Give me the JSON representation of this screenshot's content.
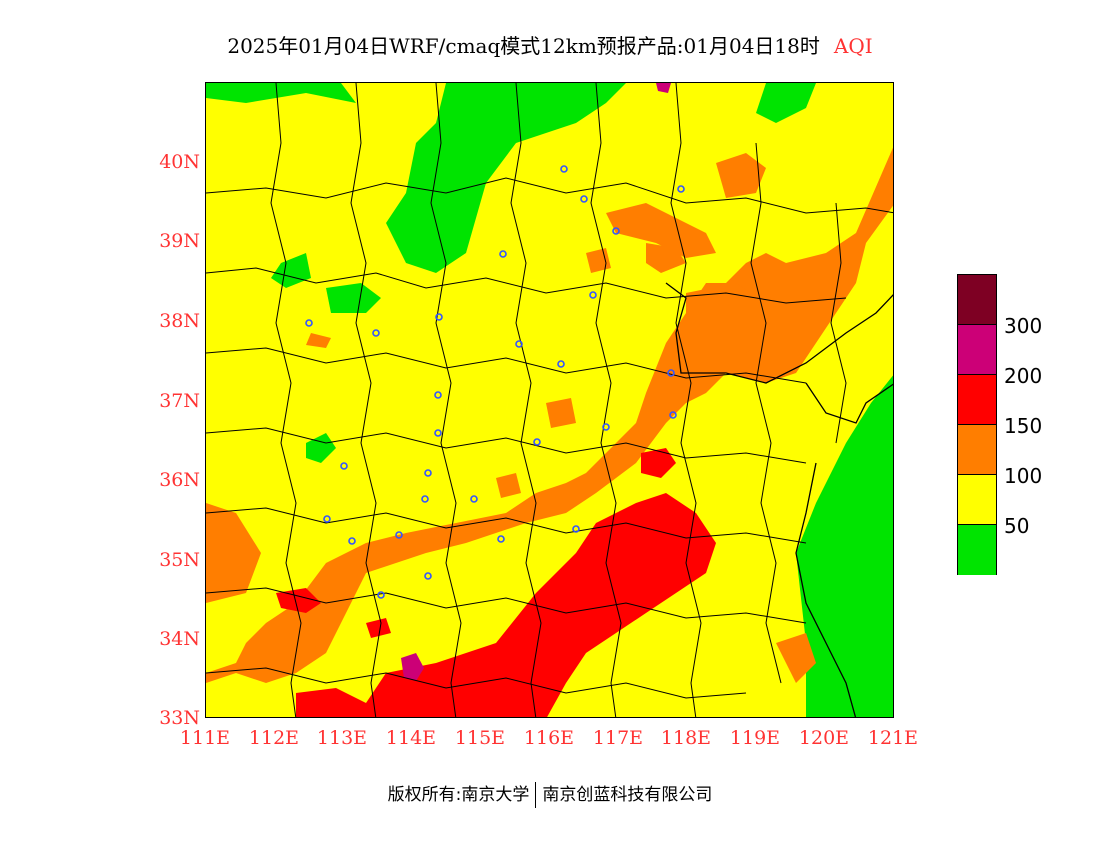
{
  "title": {
    "main": "2025年01月04日WRF/cmaq模式12km预报产品:01月04日18时",
    "product": "AQI"
  },
  "map": {
    "lat_labels": [
      "40N",
      "39N",
      "38N",
      "37N",
      "36N",
      "35N",
      "34N",
      "33N"
    ],
    "lon_labels": [
      "111E",
      "112E",
      "113E",
      "114E",
      "115E",
      "116E",
      "117E",
      "118E",
      "119E",
      "120E",
      "121E"
    ],
    "colors": {
      "level_0_50": "#00e400",
      "level_50_100": "#ffff00",
      "level_100_150": "#ff7e00",
      "level_150_200": "#ff0000",
      "level_200_300": "#cc0077",
      "level_300_plus": "#7e0023",
      "city_marker": "#3355ff",
      "axis_label": "#ff3333"
    }
  },
  "legend": {
    "labels": [
      "300",
      "200",
      "150",
      "100",
      "50"
    ]
  },
  "footer": {
    "copyright_owner": "版权所有:南京大学",
    "company": "南京创蓝科技有限公司"
  }
}
